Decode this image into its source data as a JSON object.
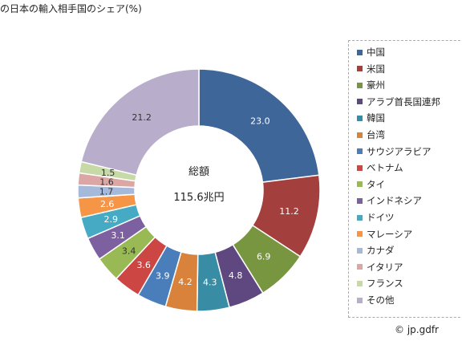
{
  "chart_data": {
    "type": "pie",
    "title": "の日本の輸入相手国のシェア(%)",
    "center_label": "総額",
    "center_value": "115.6兆円",
    "slices": [
      {
        "name": "中国",
        "value": 23.0,
        "label": "23.0",
        "color": "#3f6699"
      },
      {
        "name": "米国",
        "value": 11.2,
        "label": "11.2",
        "color": "#a33f3d"
      },
      {
        "name": "豪州",
        "value": 6.9,
        "label": "6.9",
        "color": "#78953f"
      },
      {
        "name": "アラブ首長国連邦",
        "value": 4.8,
        "label": "4.8",
        "color": "#5f4880"
      },
      {
        "name": "韓国",
        "value": 4.3,
        "label": "4.3",
        "color": "#388ca3"
      },
      {
        "name": "台湾",
        "value": 4.2,
        "label": "4.2",
        "color": "#d9823b"
      },
      {
        "name": "サウジアラビア",
        "value": 3.9,
        "label": "3.9",
        "color": "#4a7ebb"
      },
      {
        "name": "ベトナム",
        "value": 3.6,
        "label": "3.6",
        "color": "#cc4644"
      },
      {
        "name": "タイ",
        "value": 3.4,
        "label": "3.4",
        "color": "#98b954"
      },
      {
        "name": "インドネシア",
        "value": 3.1,
        "label": "3.1",
        "color": "#7d60a0"
      },
      {
        "name": "ドイツ",
        "value": 2.9,
        "label": "2.9",
        "color": "#46aac5"
      },
      {
        "name": "マレーシア",
        "value": 2.6,
        "label": "2.6",
        "color": "#f69546"
      },
      {
        "name": "カナダ",
        "value": 1.7,
        "label": "1.7",
        "color": "#a5b9db"
      },
      {
        "name": "イタリア",
        "value": 1.6,
        "label": "1.6",
        "color": "#dca6a5"
      },
      {
        "name": "フランス",
        "value": 1.5,
        "label": "1.5",
        "color": "#c8d9a8"
      },
      {
        "name": "その他",
        "value": 21.2,
        "label": "21.2",
        "color": "#b8aecb"
      }
    ]
  },
  "copyright": "© jp.gdfr"
}
